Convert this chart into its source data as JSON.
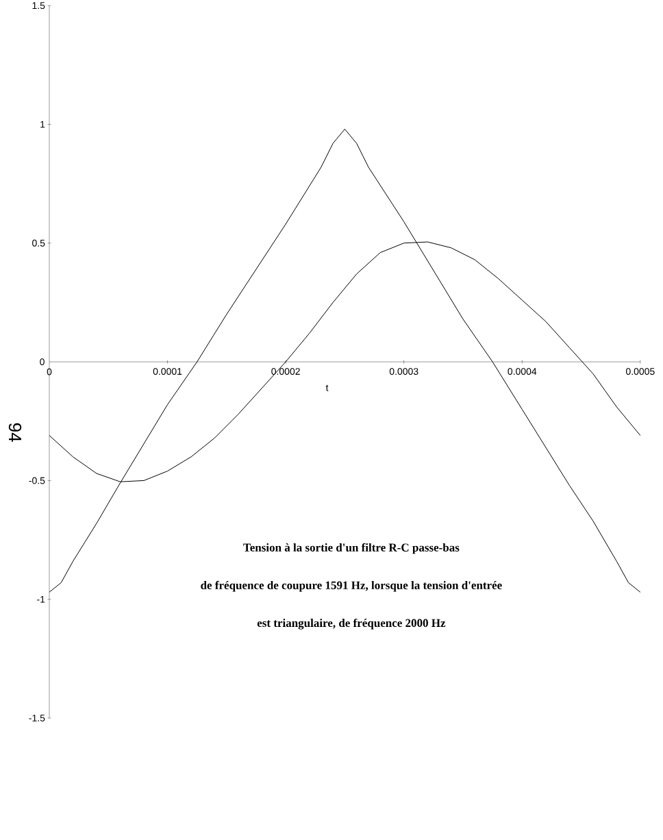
{
  "chart_data": {
    "type": "line",
    "xlabel": "t",
    "annotations": [
      "Tension à la sortie d'un filtre R-C passe-bas",
      "de fréquence de coupure 1591 Hz, lorsque la tension d'entrée",
      "est triangulaire, de fréquence 2000 Hz",
      "94"
    ],
    "xlim": [
      0,
      0.0005
    ],
    "ylim": [
      -1.5,
      1.5
    ],
    "xticks": [
      0,
      {
        "value": 0.0001,
        "label": "0.0001"
      },
      {
        "value": 0.0002,
        "label": "0.0002"
      },
      {
        "value": 0.0003,
        "label": "0.0003"
      },
      {
        "value": 0.0004,
        "label": "0.0004"
      },
      {
        "value": 0.0005,
        "label": "0.0005"
      }
    ],
    "yticks": [
      -1.5,
      -1,
      -0.5,
      0,
      0.5,
      1,
      1.5
    ],
    "marker": "none",
    "line_style": "solid",
    "grid": false,
    "series": [
      {
        "color": "#000000",
        "x": [
          0,
          1e-05,
          2e-05,
          4e-05,
          6e-05,
          0.0001,
          0.000125,
          0.00015,
          0.0002,
          0.00023,
          0.00024,
          0.00025,
          0.00026,
          0.00027,
          0.0003,
          0.00035,
          0.000375,
          0.0004,
          0.00044,
          0.00046,
          0.00048,
          0.00049,
          0.0005
        ],
        "values": [
          -0.97,
          -0.93,
          -0.84,
          -0.68,
          -0.51,
          -0.18,
          0,
          0.2,
          0.58,
          0.82,
          0.92,
          0.98,
          0.92,
          0.82,
          0.59,
          0.18,
          0,
          -0.2,
          -0.52,
          -0.67,
          -0.84,
          -0.93,
          -0.97
        ]
      },
      {
        "color": "#000000",
        "x": [
          0,
          2e-05,
          4e-05,
          6e-05,
          8e-05,
          0.0001,
          0.00012,
          0.00014,
          0.00016,
          0.00018,
          0.0002,
          0.00022,
          0.00024,
          0.00026,
          0.00028,
          0.0003,
          0.00032,
          0.00034,
          0.00036,
          0.00038,
          0.0004,
          0.00042,
          0.00044,
          0.00046,
          0.00048,
          0.0005
        ],
        "values": [
          -0.31,
          -0.4,
          -0.47,
          -0.505,
          -0.5,
          -0.46,
          -0.4,
          -0.32,
          -0.22,
          -0.11,
          0,
          0.12,
          0.25,
          0.37,
          0.46,
          0.5,
          0.505,
          0.48,
          0.43,
          0.35,
          0.26,
          0.17,
          0.06,
          -0.05,
          -0.19,
          -0.31
        ]
      }
    ]
  }
}
